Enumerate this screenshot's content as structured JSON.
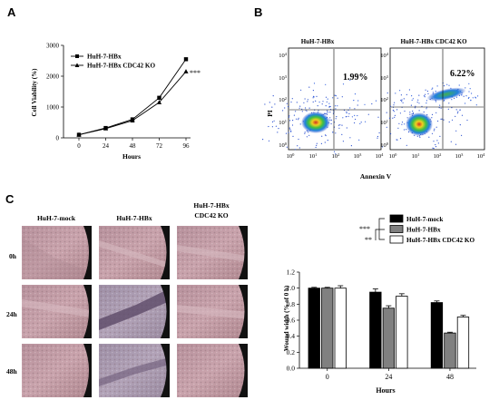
{
  "panels": {
    "a": "A",
    "b": "B",
    "c": "C"
  },
  "chart_data": [
    {
      "type": "line",
      "x": [
        0,
        24,
        48,
        72,
        96
      ],
      "xlabel": "Hours",
      "ylabel": "Cell Viability (%)",
      "yticks": [
        0,
        1000,
        2000,
        3000
      ],
      "ylim": [
        0,
        3000
      ],
      "annotation": "***",
      "legend_position": "top-left",
      "series": [
        {
          "name": "HuH-7-HBx",
          "marker": "square",
          "values": [
            100,
            320,
            600,
            1300,
            2550
          ]
        },
        {
          "name": "HuH-7-HBx CDC42 KO",
          "marker": "triangle",
          "values": [
            100,
            300,
            560,
            1150,
            2150
          ]
        }
      ]
    },
    {
      "type": "scatter",
      "xlabel": "Annexin V",
      "ylabel": "PI",
      "axis_ticks": {
        "base": "10",
        "exponents": [
          "0",
          "1",
          "2",
          "3",
          "4"
        ]
      },
      "plots": [
        {
          "title": "HuH-7-HBx",
          "percent": "1.99%"
        },
        {
          "title": "HuH-7-HBx CDC42 KO",
          "percent": "6.22%"
        }
      ]
    },
    {
      "type": "bar",
      "categories": [
        "0",
        "24",
        "48"
      ],
      "xlabel": "Hours",
      "ylabel": "Wound width (% of 0 h)",
      "yticks": [
        "0.0",
        "0.2",
        "0.4",
        "0.6",
        "0.8",
        "1.0",
        "1.2"
      ],
      "ylim": [
        0,
        1.2
      ],
      "significance": [
        "***",
        "**"
      ],
      "legend_position": "top-right",
      "series": [
        {
          "name": "HuH-7-mock",
          "color": "#000000",
          "values": [
            1.0,
            0.95,
            0.82
          ],
          "errors": [
            0.01,
            0.04,
            0.02
          ]
        },
        {
          "name": "HuH-7-HBx",
          "color": "#808080",
          "values": [
            1.0,
            0.75,
            0.44
          ],
          "errors": [
            0.01,
            0.03,
            0.01
          ]
        },
        {
          "name": "HuH-7-HBx CDC42 KO",
          "color": "#ffffff",
          "values": [
            1.0,
            0.9,
            0.64
          ],
          "errors": [
            0.03,
            0.03,
            0.02
          ]
        }
      ]
    }
  ],
  "wound_assay": {
    "columns": [
      "HuH-7-mock",
      "HuH-7-HBx",
      "HuH-7-HBx"
    ],
    "column_note": "CDC42 KO",
    "rows": [
      "0h",
      "24h",
      "48h"
    ]
  }
}
